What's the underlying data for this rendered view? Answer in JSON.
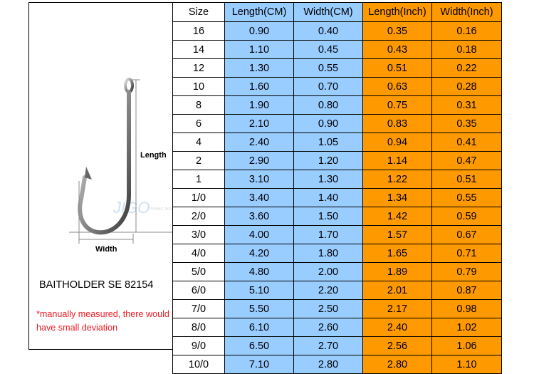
{
  "product_name": "BAITHOLDER SE 82154",
  "note": "*manually measured, there would have small deviation",
  "diagram": {
    "length_label": "Length",
    "width_label": "Width",
    "watermark": "JIGO FISHING TACKLE"
  },
  "colors": {
    "cm_columns": "#99ccff",
    "inch_columns": "#ff9900",
    "note_text": "#ee1c25"
  },
  "chart_data": {
    "type": "table",
    "title": "BAITHOLDER SE 82154",
    "columns": [
      "Size",
      "Length(CM)",
      "Width(CM)",
      "Length(Inch)",
      "Width(Inch)"
    ],
    "rows": [
      [
        "16",
        "0.90",
        "0.40",
        "0.35",
        "0.16"
      ],
      [
        "14",
        "1.10",
        "0.45",
        "0.43",
        "0.18"
      ],
      [
        "12",
        "1.30",
        "0.55",
        "0.51",
        "0.22"
      ],
      [
        "10",
        "1.60",
        "0.70",
        "0.63",
        "0.28"
      ],
      [
        "8",
        "1.90",
        "0.80",
        "0.75",
        "0.31"
      ],
      [
        "6",
        "2.10",
        "0.90",
        "0.83",
        "0.35"
      ],
      [
        "4",
        "2.40",
        "1.05",
        "0.94",
        "0.41"
      ],
      [
        "2",
        "2.90",
        "1.20",
        "1.14",
        "0.47"
      ],
      [
        "1",
        "3.10",
        "1.30",
        "1.22",
        "0.51"
      ],
      [
        "1/0",
        "3.40",
        "1.40",
        "1.34",
        "0.55"
      ],
      [
        "2/0",
        "3.60",
        "1.50",
        "1.42",
        "0.59"
      ],
      [
        "3/0",
        "4.00",
        "1.70",
        "1.57",
        "0.67"
      ],
      [
        "4/0",
        "4.20",
        "1.80",
        "1.65",
        "0.71"
      ],
      [
        "5/0",
        "4.80",
        "2.00",
        "1.89",
        "0.79"
      ],
      [
        "6/0",
        "5.10",
        "2.20",
        "2.01",
        "0.87"
      ],
      [
        "7/0",
        "5.50",
        "2.50",
        "2.17",
        "0.98"
      ],
      [
        "8/0",
        "6.10",
        "2.60",
        "2.40",
        "1.02"
      ],
      [
        "9/0",
        "6.50",
        "2.70",
        "2.56",
        "1.06"
      ],
      [
        "10/0",
        "7.10",
        "2.80",
        "2.80",
        "1.10"
      ]
    ]
  }
}
